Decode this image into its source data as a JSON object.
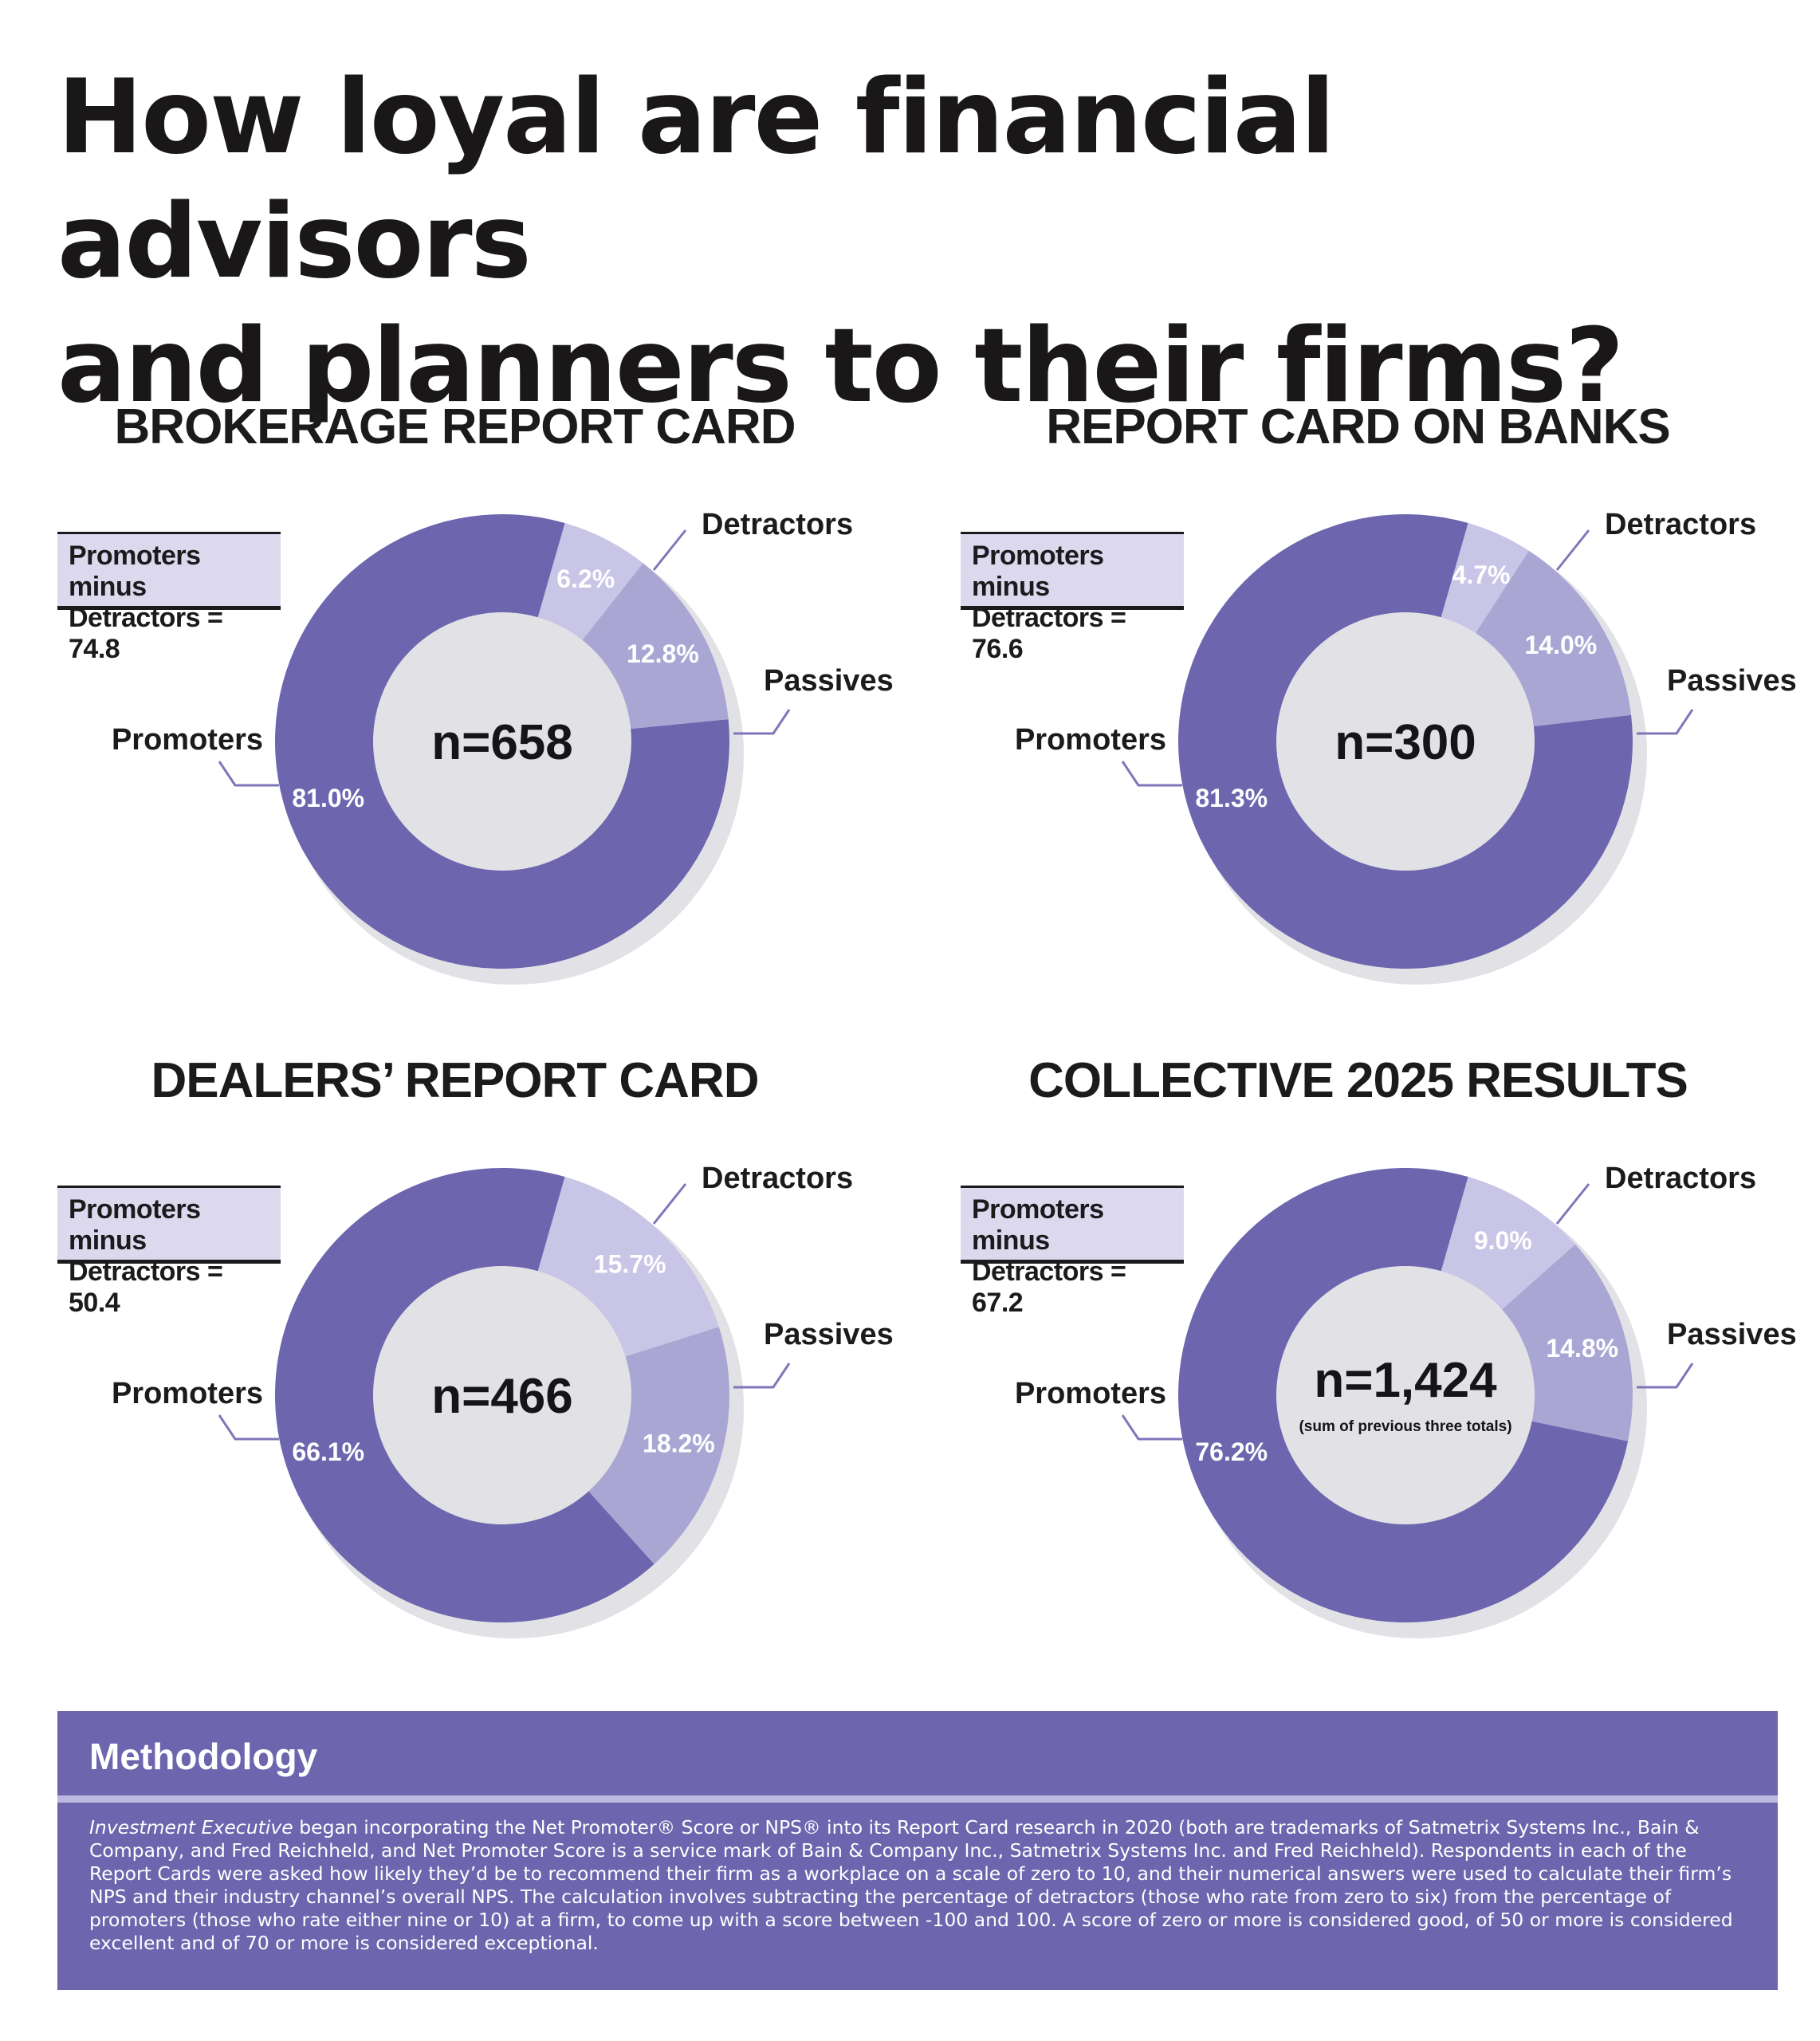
{
  "page": {
    "title_line1": "How loyal are financial advisors",
    "title_line2": "and planners to their firms?"
  },
  "colors": {
    "promoters": "#6d65ae",
    "passives": "#aaa6d4",
    "detractors": "#c8c5e6",
    "nps_box": "#dcd9ef",
    "methodology_bg": "#6d65ae"
  },
  "labels": {
    "promoters": "Promoters",
    "passives": "Passives",
    "detractors": "Detractors"
  },
  "chart_data": [
    {
      "type": "pie",
      "variant": "donut",
      "title": "BROKERAGE REPORT CARD",
      "center_label": "n=658",
      "center_sublabel": "",
      "nps_line1": "Promoters minus",
      "nps_line2": "Detractors = 74.8",
      "series": [
        {
          "name": "Detractors",
          "value": 6.2,
          "label": "6.2%"
        },
        {
          "name": "Passives",
          "value": 12.8,
          "label": "12.8%"
        },
        {
          "name": "Promoters",
          "value": 81.0,
          "label": "81.0%"
        }
      ]
    },
    {
      "type": "pie",
      "variant": "donut",
      "title": "REPORT CARD ON BANKS",
      "center_label": "n=300",
      "center_sublabel": "",
      "nps_line1": "Promoters minus",
      "nps_line2": "Detractors = 76.6",
      "series": [
        {
          "name": "Detractors",
          "value": 4.7,
          "label": "4.7%"
        },
        {
          "name": "Passives",
          "value": 14.0,
          "label": "14.0%"
        },
        {
          "name": "Promoters",
          "value": 81.3,
          "label": "81.3%"
        }
      ]
    },
    {
      "type": "pie",
      "variant": "donut",
      "title": "DEALERS’ REPORT CARD",
      "center_label": "n=466",
      "center_sublabel": "",
      "nps_line1": "Promoters minus",
      "nps_line2": "Detractors = 50.4",
      "series": [
        {
          "name": "Detractors",
          "value": 15.7,
          "label": "15.7%"
        },
        {
          "name": "Passives",
          "value": 18.2,
          "label": "18.2%"
        },
        {
          "name": "Promoters",
          "value": 66.1,
          "label": "66.1%"
        }
      ]
    },
    {
      "type": "pie",
      "variant": "donut",
      "title": "COLLECTIVE 2025 RESULTS",
      "center_label": "n=1,424",
      "center_sublabel": "(sum of previous three totals)",
      "nps_line1": "Promoters minus",
      "nps_line2": "Detractors = 67.2",
      "series": [
        {
          "name": "Detractors",
          "value": 9.0,
          "label": "9.0%"
        },
        {
          "name": "Passives",
          "value": 14.8,
          "label": "14.8%"
        },
        {
          "name": "Promoters",
          "value": 76.2,
          "label": "76.2%"
        }
      ]
    }
  ],
  "methodology": {
    "heading": "Methodology",
    "publication": "Investment Executive",
    "body": " began incorporating the Net Promoter® Score or NPS® into its Report Card research in 2020 (both are trademarks of Satmetrix Systems Inc., Bain & Company, and Fred Reichheld, and Net Promoter Score is a service mark of Bain & Company Inc., Satmetrix Systems Inc. and Fred Reichheld). Respondents in each of the Report Cards were asked how likely they’d be to recommend their firm as a workplace on a scale of zero to 10, and their numerical answers were used to calculate their firm’s NPS and their industry channel’s overall NPS. The calculation involves subtracting the percentage of detractors (those who rate from zero to six) from the percentage of promoters (those who rate either nine or 10) at a firm, to come up with a score between -100 and 100. A score of zero or more is considered good, of 50 or more is considered excellent and of 70 or more is considered exceptional."
  }
}
